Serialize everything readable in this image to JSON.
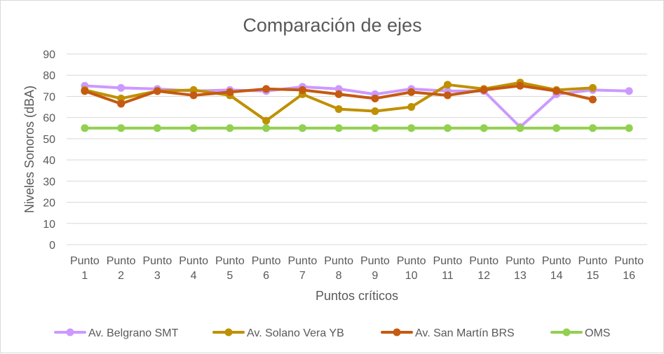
{
  "chart_data": {
    "type": "line",
    "title": "Comparación de ejes",
    "xlabel": "Puntos críticos",
    "ylabel": "Niveles Sonoros (dBA)",
    "ylim": [
      0,
      90
    ],
    "yticks": [
      "0",
      "10",
      "20",
      "30",
      "40",
      "50",
      "60",
      "70",
      "80",
      "90"
    ],
    "grid": true,
    "legend_position": "bottom",
    "categories": [
      [
        "Punto",
        "1"
      ],
      [
        "Punto",
        "2"
      ],
      [
        "Punto",
        "3"
      ],
      [
        "Punto",
        "4"
      ],
      [
        "Punto",
        "5"
      ],
      [
        "Punto",
        "6"
      ],
      [
        "Punto",
        "7"
      ],
      [
        "Punto",
        "8"
      ],
      [
        "Punto",
        "9"
      ],
      [
        "Punto",
        "10"
      ],
      [
        "Punto",
        "11"
      ],
      [
        "Punto",
        "12"
      ],
      [
        "Punto",
        "13"
      ],
      [
        "Punto",
        "14"
      ],
      [
        "Punto",
        "15"
      ],
      [
        "Punto",
        "16"
      ]
    ],
    "series": [
      {
        "name": "Av. Belgrano SMT",
        "color": "#cc99ff",
        "values": [
          75,
          74,
          73.5,
          72.5,
          73,
          72.5,
          74.5,
          73.5,
          71,
          73.5,
          72.5,
          72.5,
          55.5,
          71,
          73,
          72.5
        ]
      },
      {
        "name": "Av. Solano Vera YB",
        "color": "#bf9000",
        "values": [
          73,
          69,
          72.5,
          73,
          70.5,
          58.5,
          71,
          64,
          63,
          65,
          75.5,
          73.5,
          76.5,
          73,
          74,
          null
        ]
      },
      {
        "name": "Av. San Martín BRS",
        "color": "#c55a11",
        "values": [
          72.5,
          66.5,
          72.5,
          70.5,
          72,
          73.5,
          73,
          71,
          69,
          72,
          70.5,
          73,
          75,
          72.5,
          68.5,
          null
        ]
      },
      {
        "name": "OMS",
        "color": "#92d050",
        "values": [
          55,
          55,
          55,
          55,
          55,
          55,
          55,
          55,
          55,
          55,
          55,
          55,
          55,
          55,
          55,
          55
        ]
      }
    ]
  },
  "colors": {
    "gridline": "#d9d9d9",
    "text": "#595959",
    "border": "#d9d9d9"
  }
}
